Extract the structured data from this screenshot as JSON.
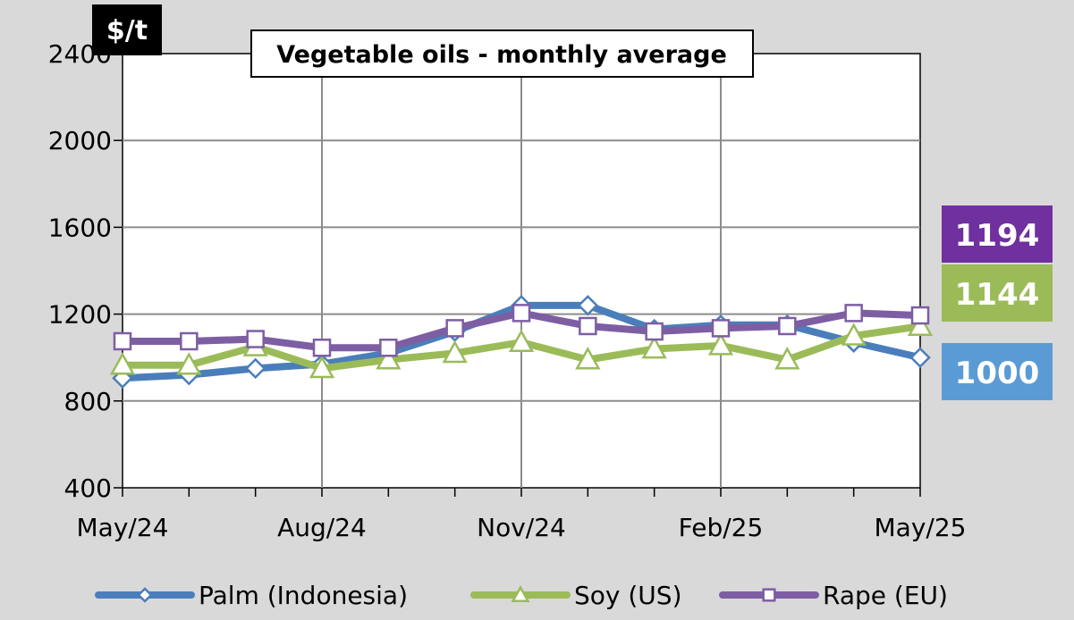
{
  "chart_data": {
    "type": "line",
    "title": "Vegetable oils - monthly average",
    "unit_label": "$/t",
    "ylim": [
      400,
      2400
    ],
    "y_ticks": [
      400,
      800,
      1200,
      1600,
      2000,
      2400
    ],
    "x": [
      "May/24",
      "Jun/24",
      "Jul/24",
      "Aug/24",
      "Sep/24",
      "Oct/24",
      "Nov/24",
      "Dec/24",
      "Jan/25",
      "Feb/25",
      "Mar/25",
      "Apr/25",
      "May/25"
    ],
    "x_tick_labels": [
      "May/24",
      "Aug/24",
      "Nov/24",
      "Feb/25",
      "May/25"
    ],
    "grid": true,
    "legend_position": "bottom",
    "series": [
      {
        "name": "Palm (Indonesia)",
        "color": "#4a7ebb",
        "marker": "diamond",
        "values": [
          905,
          920,
          950,
          970,
          1020,
          1120,
          1240,
          1240,
          1130,
          1150,
          1150,
          1070,
          1000
        ]
      },
      {
        "name": "Soy (US)",
        "color": "#9bbb59",
        "marker": "triangle",
        "values": [
          965,
          965,
          1050,
          950,
          990,
          1020,
          1070,
          990,
          1040,
          1055,
          990,
          1100,
          1144
        ]
      },
      {
        "name": "Rape (EU)",
        "color": "#7d5ea3",
        "marker": "square",
        "values": [
          1075,
          1075,
          1085,
          1045,
          1045,
          1135,
          1205,
          1145,
          1120,
          1135,
          1145,
          1205,
          1194
        ]
      }
    ],
    "end_badges": [
      {
        "series": "Rape (EU)",
        "text": "1194",
        "color": "#7030a0"
      },
      {
        "series": "Soy (US)",
        "text": "1144",
        "color": "#9bbb59"
      },
      {
        "series": "Palm (Indonesia)",
        "text": "1000",
        "color": "#5b9bd5"
      }
    ]
  }
}
